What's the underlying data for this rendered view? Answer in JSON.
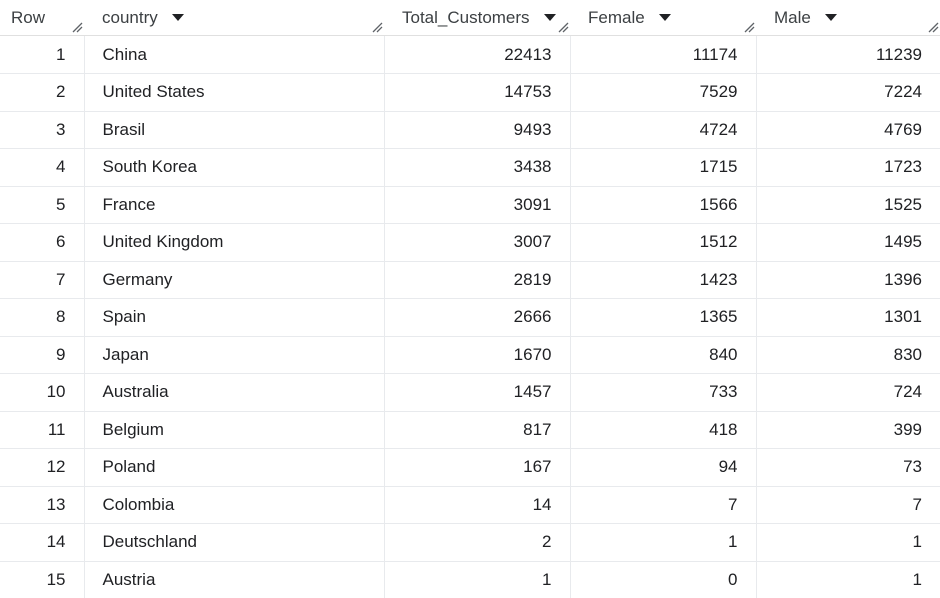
{
  "columns": {
    "row": "Row",
    "country": "country",
    "total": "Total_Customers",
    "female": "Female",
    "male": "Male"
  },
  "icons": {
    "sort": "caret-down-icon",
    "resize": "column-resize-icon"
  },
  "rows": [
    {
      "row": "1",
      "country": "China",
      "total": "22413",
      "female": "11174",
      "male": "11239"
    },
    {
      "row": "2",
      "country": "United States",
      "total": "14753",
      "female": "7529",
      "male": "7224"
    },
    {
      "row": "3",
      "country": "Brasil",
      "total": "9493",
      "female": "4724",
      "male": "4769"
    },
    {
      "row": "4",
      "country": "South Korea",
      "total": "3438",
      "female": "1715",
      "male": "1723"
    },
    {
      "row": "5",
      "country": "France",
      "total": "3091",
      "female": "1566",
      "male": "1525"
    },
    {
      "row": "6",
      "country": "United Kingdom",
      "total": "3007",
      "female": "1512",
      "male": "1495"
    },
    {
      "row": "7",
      "country": "Germany",
      "total": "2819",
      "female": "1423",
      "male": "1396"
    },
    {
      "row": "8",
      "country": "Spain",
      "total": "2666",
      "female": "1365",
      "male": "1301"
    },
    {
      "row": "9",
      "country": "Japan",
      "total": "1670",
      "female": "840",
      "male": "830"
    },
    {
      "row": "10",
      "country": "Australia",
      "total": "1457",
      "female": "733",
      "male": "724"
    },
    {
      "row": "11",
      "country": "Belgium",
      "total": "817",
      "female": "418",
      "male": "399"
    },
    {
      "row": "12",
      "country": "Poland",
      "total": "167",
      "female": "94",
      "male": "73"
    },
    {
      "row": "13",
      "country": "Colombia",
      "total": "14",
      "female": "7",
      "male": "7"
    },
    {
      "row": "14",
      "country": "Deutschland",
      "total": "2",
      "female": "1",
      "male": "1"
    },
    {
      "row": "15",
      "country": "Austria",
      "total": "1",
      "female": "0",
      "male": "1"
    }
  ]
}
